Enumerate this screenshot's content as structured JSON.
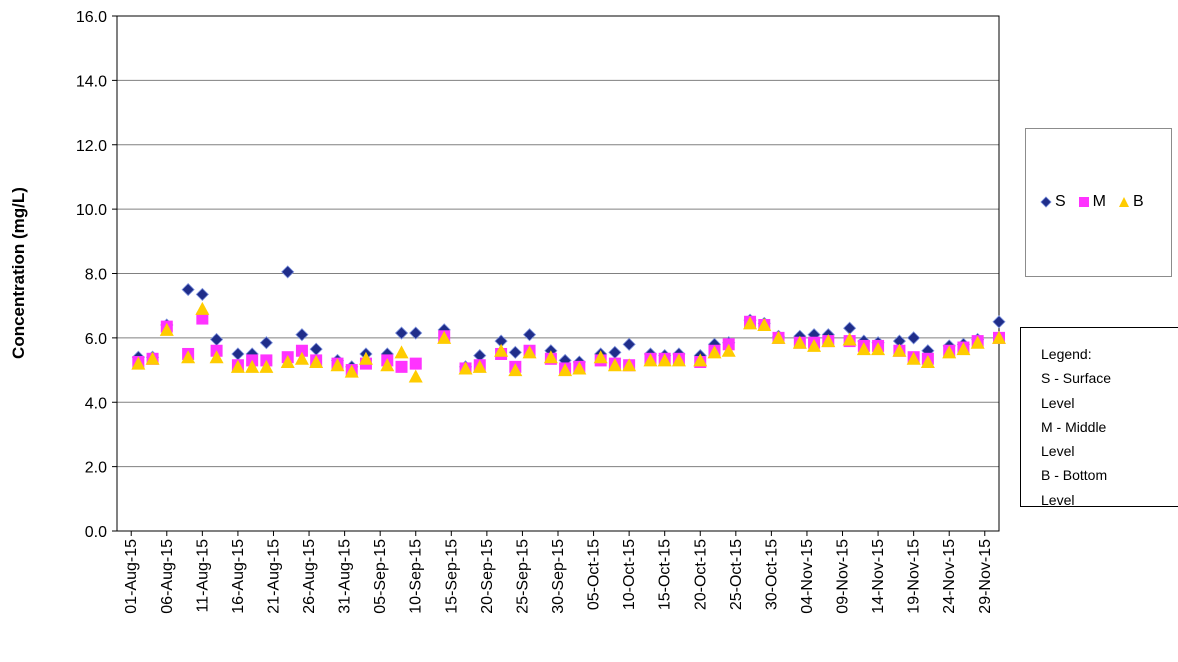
{
  "chart_data": {
    "type": "scatter",
    "title": "",
    "xlabel": "",
    "ylabel": "Concentration (mg/L)",
    "ylim": [
      0,
      16
    ],
    "yticks": [
      "0.0",
      "2.0",
      "4.0",
      "6.0",
      "8.0",
      "10.0",
      "12.0",
      "14.0",
      "16.0"
    ],
    "xlim": [
      "2015-07-30",
      "2015-12-01"
    ],
    "xticks": [
      "01-Aug-15",
      "06-Aug-15",
      "11-Aug-15",
      "16-Aug-15",
      "21-Aug-15",
      "26-Aug-15",
      "31-Aug-15",
      "05-Sep-15",
      "10-Sep-15",
      "15-Sep-15",
      "20-Sep-15",
      "25-Sep-15",
      "30-Sep-15",
      "05-Oct-15",
      "10-Oct-15",
      "15-Oct-15",
      "20-Oct-15",
      "25-Oct-15",
      "30-Oct-15",
      "04-Nov-15",
      "09-Nov-15",
      "14-Nov-15",
      "19-Nov-15",
      "24-Nov-15",
      "29-Nov-15"
    ],
    "grid": "horizontal",
    "legend_position": "right",
    "x": [
      "2015-08-02",
      "2015-08-04",
      "2015-08-06",
      "2015-08-09",
      "2015-08-11",
      "2015-08-13",
      "2015-08-16",
      "2015-08-18",
      "2015-08-20",
      "2015-08-23",
      "2015-08-25",
      "2015-08-27",
      "2015-08-30",
      "2015-09-01",
      "2015-09-03",
      "2015-09-06",
      "2015-09-08",
      "2015-09-10",
      "2015-09-14",
      "2015-09-17",
      "2015-09-19",
      "2015-09-22",
      "2015-09-24",
      "2015-09-26",
      "2015-09-29",
      "2015-10-01",
      "2015-10-03",
      "2015-10-06",
      "2015-10-08",
      "2015-10-10",
      "2015-10-13",
      "2015-10-15",
      "2015-10-17",
      "2015-10-20",
      "2015-10-22",
      "2015-10-24",
      "2015-10-27",
      "2015-10-29",
      "2015-10-31",
      "2015-11-03",
      "2015-11-05",
      "2015-11-07",
      "2015-11-10",
      "2015-11-12",
      "2015-11-14",
      "2015-11-17",
      "2015-11-19",
      "2015-11-21",
      "2015-11-24",
      "2015-11-26",
      "2015-11-28",
      "2015-12-01"
    ],
    "series": [
      {
        "name": "S",
        "color": "#1f2d8a",
        "marker": "diamond",
        "values": [
          5.4,
          5.4,
          6.4,
          7.5,
          7.35,
          5.95,
          5.5,
          5.5,
          5.85,
          8.05,
          6.1,
          5.65,
          5.3,
          5.1,
          5.5,
          5.5,
          6.15,
          6.15,
          6.25,
          5.1,
          5.45,
          5.9,
          5.55,
          6.1,
          5.6,
          5.3,
          5.25,
          5.5,
          5.55,
          5.8,
          5.5,
          5.45,
          5.5,
          5.45,
          5.8,
          5.85,
          6.55,
          6.45,
          6.05,
          6.05,
          6.1,
          6.1,
          6.3,
          5.9,
          5.85,
          5.9,
          6.0,
          5.6,
          5.75,
          5.8,
          5.95,
          6.5
        ]
      },
      {
        "name": "M",
        "color": "#ff33ff",
        "marker": "square",
        "values": [
          5.25,
          5.35,
          6.35,
          5.5,
          6.6,
          5.6,
          5.15,
          5.3,
          5.3,
          5.4,
          5.6,
          5.3,
          5.2,
          5.0,
          5.2,
          5.3,
          5.1,
          5.2,
          6.05,
          5.05,
          5.15,
          5.5,
          5.1,
          5.6,
          5.35,
          5.05,
          5.1,
          5.3,
          5.2,
          5.15,
          5.35,
          5.35,
          5.35,
          5.25,
          5.6,
          5.8,
          6.5,
          6.4,
          6.0,
          5.85,
          5.85,
          5.9,
          5.9,
          5.75,
          5.75,
          5.6,
          5.4,
          5.35,
          5.6,
          5.7,
          5.9,
          6.0
        ]
      },
      {
        "name": "B",
        "color": "#ffcc00",
        "marker": "triangle",
        "values": [
          5.2,
          5.35,
          6.25,
          5.4,
          6.9,
          5.4,
          5.1,
          5.1,
          5.1,
          5.25,
          5.35,
          5.25,
          5.15,
          4.95,
          5.35,
          5.15,
          5.55,
          4.8,
          6.0,
          5.05,
          5.1,
          5.6,
          5.0,
          5.55,
          5.4,
          5.0,
          5.05,
          5.4,
          5.15,
          5.15,
          5.3,
          5.3,
          5.3,
          5.3,
          5.55,
          5.6,
          6.45,
          6.4,
          6.0,
          5.85,
          5.75,
          5.9,
          5.95,
          5.65,
          5.65,
          5.6,
          5.35,
          5.25,
          5.55,
          5.65,
          5.85,
          6.0
        ]
      }
    ]
  },
  "legend": {
    "items": [
      {
        "label": "S",
        "color": "#1f2d8a",
        "marker": "diamond-icon"
      },
      {
        "label": "M",
        "color": "#ff33ff",
        "marker": "square-icon"
      },
      {
        "label": "B",
        "color": "#ffcc00",
        "marker": "triangle-icon"
      }
    ]
  },
  "note": {
    "lines": [
      "Legend:",
      "S - Surface",
      "Level",
      "M - Middle",
      "Level",
      "B - Bottom",
      "Level"
    ]
  }
}
